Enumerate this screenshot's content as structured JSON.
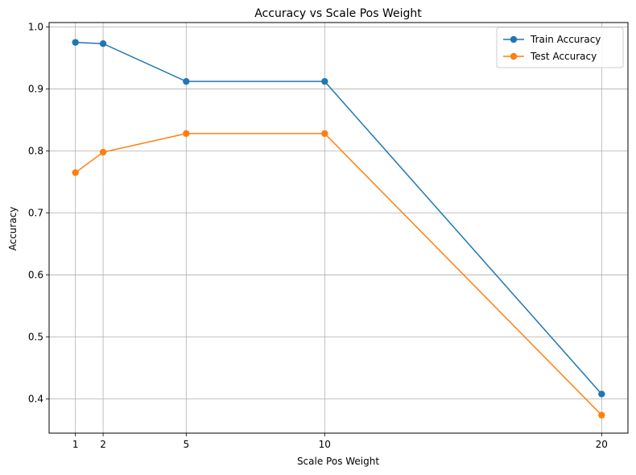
{
  "chart_data": {
    "type": "line",
    "title": "Accuracy vs Scale Pos Weight",
    "xlabel": "Scale Pos Weight",
    "ylabel": "Accuracy",
    "x": [
      1,
      2,
      5,
      10,
      20
    ],
    "xticks": [
      1,
      2,
      5,
      10,
      20
    ],
    "yticks": [
      0.4,
      0.5,
      0.6,
      0.7,
      0.8,
      0.9,
      1.0
    ],
    "ytick_labels": [
      "0.4",
      "0.5",
      "0.6",
      "0.7",
      "0.8",
      "0.9",
      "1.0"
    ],
    "xlim": [
      0.05,
      20.95
    ],
    "ylim": [
      0.345,
      1.007
    ],
    "grid": true,
    "legend_position": "top-right",
    "series": [
      {
        "name": "Train Accuracy",
        "color": "#1f77b4",
        "values": [
          0.975,
          0.973,
          0.912,
          0.912,
          0.408
        ]
      },
      {
        "name": "Test Accuracy",
        "color": "#ff7f0e",
        "values": [
          0.765,
          0.798,
          0.828,
          0.828,
          0.374
        ]
      }
    ]
  }
}
